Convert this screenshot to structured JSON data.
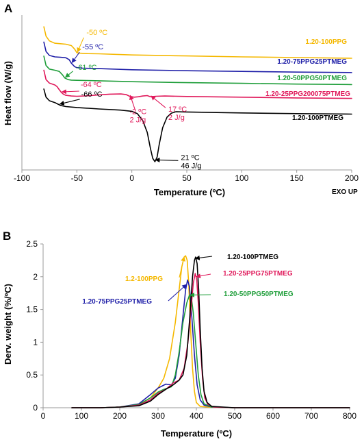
{
  "chart_data": [
    {
      "panel": "A",
      "type": "line",
      "xlabel": "Temperature (ºC)",
      "ylabel": "Heat flow (W/g)",
      "extra_label": "EXO UP",
      "xlim": [
        -100,
        200
      ],
      "xticks": [
        -100,
        -50,
        0,
        50,
        100,
        150,
        200
      ],
      "y_ticks_shown": false,
      "grid": false,
      "series": [
        {
          "name": "1.20-100PPG",
          "color": "#f5b800",
          "x": [
            -80,
            -78,
            -75,
            -70,
            -65,
            -60,
            -55,
            -52,
            -50,
            -48,
            -45,
            -40,
            -30,
            0,
            50,
            100,
            150,
            200
          ],
          "y": [
            6.1,
            5.7,
            5.5,
            5.4,
            5.38,
            5.36,
            5.3,
            5.15,
            5.0,
            4.98,
            4.97,
            4.96,
            4.95,
            4.9,
            4.86,
            4.82,
            4.79,
            4.76
          ]
        },
        {
          "name": "1.20-75PPG25PTMEG",
          "color": "#1f1fa8",
          "x": [
            -80,
            -78,
            -75,
            -70,
            -65,
            -60,
            -57,
            -55,
            -52,
            -50,
            -45,
            -40,
            -30,
            0,
            50,
            100,
            150,
            200
          ],
          "y": [
            5.45,
            5.05,
            4.88,
            4.82,
            4.8,
            4.78,
            4.7,
            4.55,
            4.4,
            4.36,
            4.34,
            4.33,
            4.32,
            4.27,
            4.23,
            4.2,
            4.17,
            4.15
          ]
        },
        {
          "name": "1.20-50PPG50PTMEG",
          "color": "#1f9e3a",
          "x": [
            -80,
            -78,
            -75,
            -70,
            -66,
            -63,
            -61,
            -58,
            -55,
            -50,
            -40,
            -30,
            0,
            50,
            100,
            150,
            200
          ],
          "y": [
            4.85,
            4.45,
            4.3,
            4.25,
            4.2,
            4.05,
            3.92,
            3.85,
            3.83,
            3.82,
            3.81,
            3.8,
            3.76,
            3.72,
            3.69,
            3.66,
            3.64
          ]
        },
        {
          "name": "1.20-25PPG200075PTMEG",
          "color": "#e0185a",
          "x": [
            -80,
            -78,
            -75,
            -70,
            -68,
            -66,
            -64,
            -62,
            -60,
            -55,
            -50,
            -40,
            -30,
            -20,
            -10,
            -5,
            -2,
            2,
            6,
            10,
            14,
            17,
            22,
            30,
            50,
            100,
            150,
            200
          ],
          "y": [
            4.25,
            3.85,
            3.7,
            3.62,
            3.55,
            3.42,
            3.3,
            3.22,
            3.18,
            3.15,
            3.14,
            3.16,
            3.2,
            3.23,
            3.24,
            3.21,
            3.14,
            3.1,
            3.12,
            3.15,
            3.17,
            3.12,
            3.14,
            3.15,
            3.13,
            3.1,
            3.07,
            3.05
          ]
        },
        {
          "name": "1.20-100PTMEG",
          "color": "#000000",
          "x": [
            -80,
            -78,
            -75,
            -70,
            -67,
            -65,
            -60,
            -50,
            -30,
            -10,
            0,
            5,
            10,
            14,
            17,
            19,
            21,
            23,
            25,
            28,
            32,
            36,
            40,
            50,
            100,
            150,
            200
          ],
          "y": [
            3.45,
            3.1,
            2.95,
            2.87,
            2.8,
            2.75,
            2.7,
            2.66,
            2.6,
            2.55,
            2.5,
            2.4,
            2.1,
            1.6,
            0.9,
            0.5,
            0.35,
            0.55,
            1.1,
            1.8,
            2.25,
            2.42,
            2.48,
            2.47,
            2.43,
            2.4,
            2.38
          ]
        }
      ],
      "annotations": [
        {
          "text": "-50 ºC",
          "color": "#f5b800",
          "x": -50,
          "y": 5.0
        },
        {
          "text": "-55 ºC",
          "color": "#1f1fa8",
          "x": -55,
          "y": 4.55
        },
        {
          "text": "-61 ºC",
          "color": "#1f9e3a",
          "x": -61,
          "y": 3.92
        },
        {
          "text": "-64 ºC",
          "color": "#e0185a",
          "x": -64,
          "y": 3.3
        },
        {
          "text": "-66 ºC",
          "color": "#000000",
          "x": -66,
          "y": 2.78
        },
        {
          "text": "-2 ºC",
          "text2": "2 J/g",
          "color": "#e0185a",
          "x": -2,
          "y": 3.14
        },
        {
          "text": "17 ºC",
          "text2": "2 J/g",
          "color": "#e0185a",
          "x": 17,
          "y": 3.12
        },
        {
          "text": "21 ºC",
          "text2": "46 J/g",
          "color": "#000000",
          "x": 21,
          "y": 0.4
        }
      ]
    },
    {
      "panel": "B",
      "type": "line",
      "xlabel": "Temperature (ºC)",
      "ylabel": "Derv. weight (%/ºC)",
      "xlim": [
        0,
        800
      ],
      "ylim": [
        0,
        2.5
      ],
      "xticks": [
        0,
        100,
        200,
        300,
        400,
        500,
        600,
        700,
        800
      ],
      "yticks": [
        0,
        0.5,
        1,
        1.5,
        2,
        2.5
      ],
      "grid": false,
      "series": [
        {
          "name": "1.2-100PPG",
          "color": "#f5b800",
          "x": [
            75,
            150,
            200,
            250,
            280,
            300,
            315,
            330,
            345,
            355,
            362,
            368,
            372,
            376,
            380,
            385,
            390,
            395,
            400,
            410,
            430,
            500,
            600,
            700,
            800
          ],
          "y": [
            0,
            0,
            0.01,
            0.05,
            0.15,
            0.3,
            0.45,
            0.75,
            1.3,
            1.8,
            2.15,
            2.3,
            2.32,
            2.25,
            1.9,
            1.2,
            0.6,
            0.25,
            0.08,
            0.02,
            0.01,
            0,
            0,
            0,
            0
          ]
        },
        {
          "name": "1.20-75PPG25PTMEG",
          "color": "#1f1fa8",
          "x": [
            75,
            150,
            200,
            250,
            280,
            300,
            320,
            335,
            345,
            355,
            365,
            372,
            377,
            382,
            388,
            395,
            402,
            410,
            420,
            440,
            500,
            600,
            700,
            800
          ],
          "y": [
            0,
            0,
            0.01,
            0.06,
            0.2,
            0.3,
            0.36,
            0.35,
            0.45,
            0.8,
            1.4,
            1.8,
            1.95,
            1.85,
            1.4,
            0.8,
            0.35,
            0.12,
            0.04,
            0.01,
            0,
            0,
            0,
            0
          ]
        },
        {
          "name": "1.20-50PPG50PTMEG",
          "color": "#1f9e3a",
          "x": [
            75,
            150,
            200,
            250,
            280,
            300,
            315,
            325,
            335,
            345,
            355,
            365,
            375,
            382,
            387,
            392,
            398,
            405,
            412,
            420,
            440,
            500,
            600,
            700,
            800
          ],
          "y": [
            0,
            0,
            0.01,
            0.05,
            0.15,
            0.24,
            0.28,
            0.3,
            0.32,
            0.5,
            0.85,
            1.3,
            1.6,
            1.72,
            1.68,
            1.45,
            1.0,
            0.5,
            0.2,
            0.06,
            0.01,
            0,
            0,
            0,
            0
          ]
        },
        {
          "name": "1.20-25PPG75PTMEG",
          "color": "#e0185a",
          "x": [
            75,
            150,
            200,
            250,
            280,
            300,
            320,
            340,
            355,
            368,
            378,
            386,
            392,
            397,
            401,
            405,
            410,
            416,
            422,
            430,
            445,
            500,
            600,
            700,
            800
          ],
          "y": [
            0,
            0,
            0.01,
            0.04,
            0.12,
            0.22,
            0.28,
            0.38,
            0.42,
            0.6,
            1.0,
            1.5,
            1.9,
            2.05,
            1.95,
            1.6,
            1.0,
            0.45,
            0.15,
            0.05,
            0.01,
            0,
            0,
            0,
            0
          ]
        },
        {
          "name": "1.20-100PTMEG",
          "color": "#000000",
          "x": [
            75,
            150,
            200,
            250,
            280,
            300,
            320,
            340,
            355,
            365,
            375,
            383,
            390,
            395,
            398,
            402,
            406,
            410,
            415,
            420,
            428,
            440,
            500,
            600,
            700,
            800
          ],
          "y": [
            0,
            0,
            0.01,
            0.03,
            0.1,
            0.2,
            0.28,
            0.35,
            0.42,
            0.5,
            0.8,
            1.4,
            2.0,
            2.25,
            2.3,
            2.2,
            1.8,
            1.2,
            0.6,
            0.25,
            0.08,
            0.02,
            0,
            0,
            0,
            0
          ]
        }
      ],
      "annotations": [
        {
          "text": "1.2-100PPG",
          "color": "#f5b800",
          "target_x": 368,
          "target_y": 2.3
        },
        {
          "text": "1.20-100PTMEG",
          "color": "#000000",
          "target_x": 398,
          "target_y": 2.28
        },
        {
          "text": "1.20-25PPG75PTMEG",
          "color": "#e0185a",
          "target_x": 400,
          "target_y": 2.0
        },
        {
          "text": "1.20-75PPG25PTMEG",
          "color": "#1f1fa8",
          "target_x": 374,
          "target_y": 1.88
        },
        {
          "text": "1.20-50PPG50PTMEG",
          "color": "#1f9e3a",
          "target_x": 384,
          "target_y": 1.72
        }
      ]
    }
  ]
}
